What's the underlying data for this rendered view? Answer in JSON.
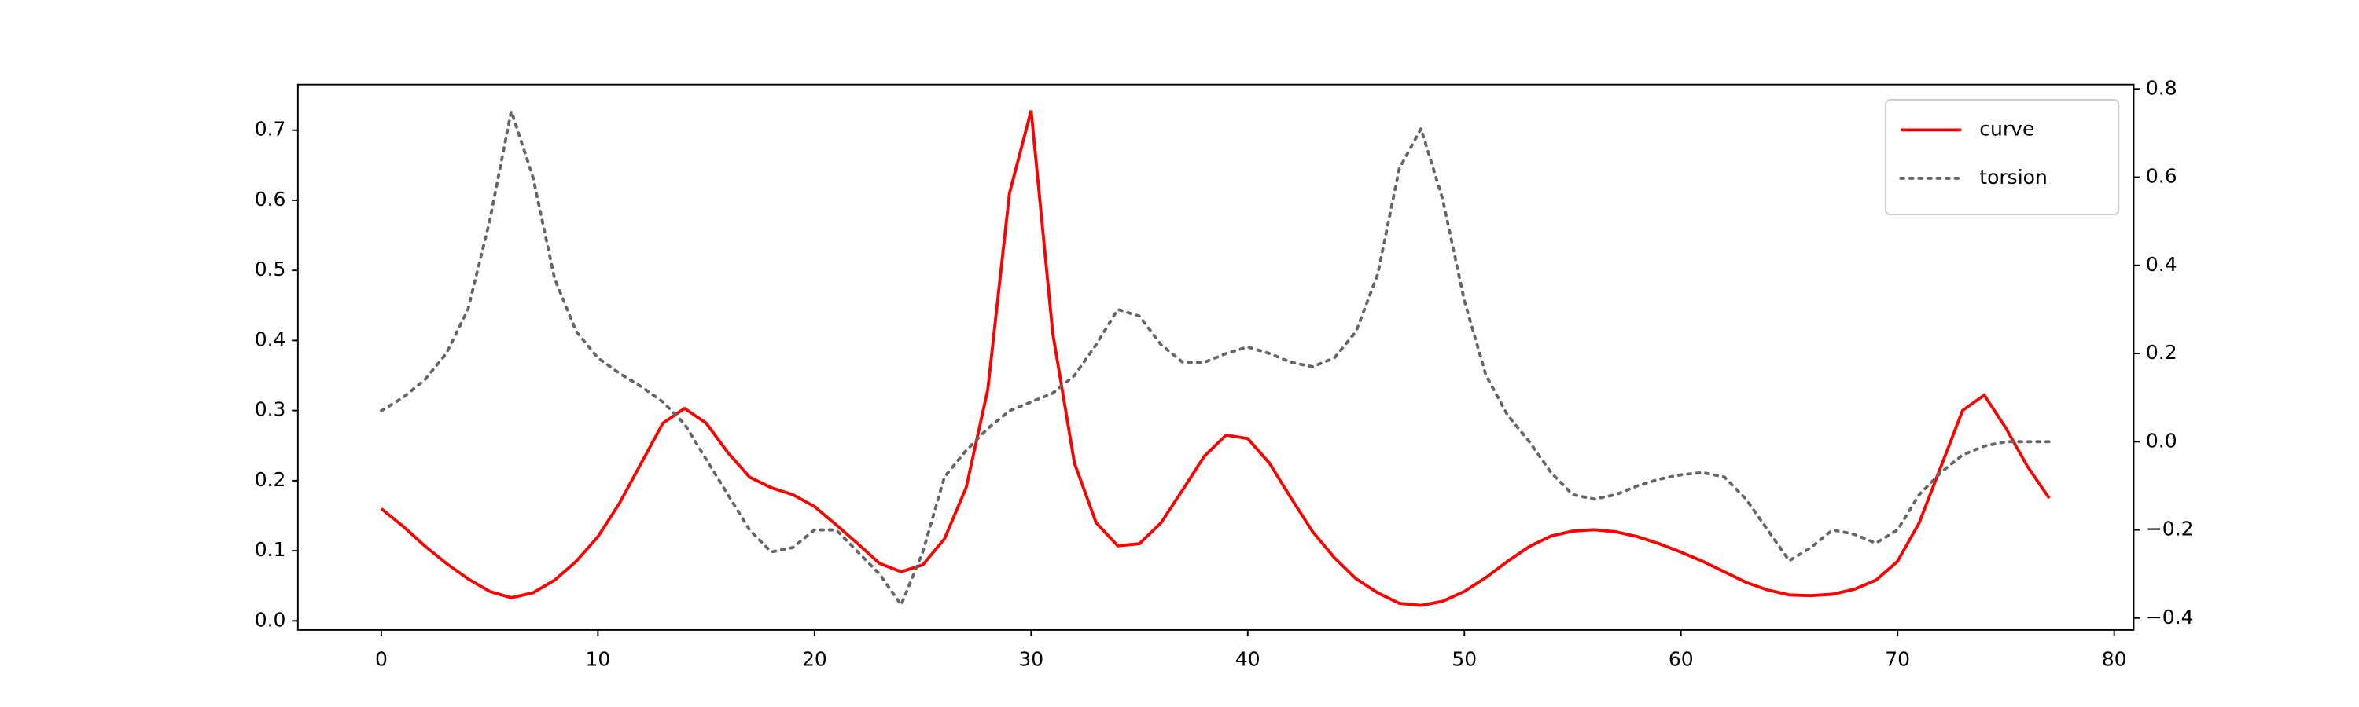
{
  "chart_data": {
    "type": "line",
    "x": [
      0,
      1,
      2,
      3,
      4,
      5,
      6,
      7,
      8,
      9,
      10,
      11,
      12,
      13,
      14,
      15,
      16,
      17,
      18,
      19,
      20,
      21,
      22,
      23,
      24,
      25,
      26,
      27,
      28,
      29,
      30,
      31,
      32,
      33,
      34,
      35,
      36,
      37,
      38,
      39,
      40,
      41,
      42,
      43,
      44,
      45,
      46,
      47,
      48,
      49,
      50,
      51,
      52,
      53,
      54,
      55,
      56,
      57,
      58,
      59,
      60,
      61,
      62,
      63,
      64,
      65,
      66,
      67,
      68,
      69,
      70,
      71,
      72,
      73,
      74,
      75,
      76,
      77
    ],
    "series": [
      {
        "name": "curve",
        "color": "#ff0000",
        "linestyle": "solid",
        "axis": "y",
        "values": [
          0.16,
          0.135,
          0.107,
          0.082,
          0.06,
          0.042,
          0.033,
          0.04,
          0.058,
          0.085,
          0.12,
          0.168,
          0.225,
          0.282,
          0.303,
          0.282,
          0.24,
          0.205,
          0.19,
          0.18,
          0.163,
          0.137,
          0.11,
          0.082,
          0.07,
          0.08,
          0.117,
          0.19,
          0.33,
          0.61,
          0.728,
          0.41,
          0.225,
          0.14,
          0.107,
          0.11,
          0.14,
          0.187,
          0.235,
          0.265,
          0.26,
          0.225,
          0.175,
          0.127,
          0.09,
          0.06,
          0.04,
          0.025,
          0.022,
          0.028,
          0.042,
          0.062,
          0.085,
          0.106,
          0.121,
          0.128,
          0.13,
          0.127,
          0.12,
          0.11,
          0.098,
          0.085,
          0.07,
          0.055,
          0.044,
          0.037,
          0.036,
          0.038,
          0.045,
          0.058,
          0.085,
          0.14,
          0.22,
          0.3,
          0.322,
          0.275,
          0.22,
          0.175
        ]
      },
      {
        "name": "torsion",
        "color": "#666666",
        "linestyle": "dotted",
        "axis": "y2",
        "values": [
          0.07,
          0.1,
          0.14,
          0.2,
          0.3,
          0.5,
          0.75,
          0.6,
          0.37,
          0.25,
          0.19,
          0.155,
          0.125,
          0.09,
          0.04,
          -0.04,
          -0.12,
          -0.2,
          -0.25,
          -0.24,
          -0.2,
          -0.2,
          -0.25,
          -0.3,
          -0.37,
          -0.25,
          -0.08,
          -0.02,
          0.03,
          0.07,
          0.09,
          0.11,
          0.15,
          0.22,
          0.3,
          0.285,
          0.22,
          0.18,
          0.18,
          0.2,
          0.215,
          0.2,
          0.18,
          0.17,
          0.19,
          0.25,
          0.38,
          0.62,
          0.71,
          0.55,
          0.32,
          0.15,
          0.06,
          0.0,
          -0.07,
          -0.12,
          -0.13,
          -0.12,
          -0.1,
          -0.085,
          -0.075,
          -0.07,
          -0.08,
          -0.13,
          -0.2,
          -0.27,
          -0.24,
          -0.2,
          -0.21,
          -0.23,
          -0.2,
          -0.12,
          -0.07,
          -0.03,
          -0.01,
          0.0,
          0.0,
          0.0
        ]
      }
    ],
    "xlim": [
      -3.85,
      80.9
    ],
    "xticks": [
      0,
      10,
      20,
      30,
      40,
      50,
      60,
      70,
      80
    ],
    "ylim": [
      -0.013,
      0.765
    ],
    "yticks": [
      {
        "value": 0,
        "label": "0.0"
      },
      0.1,
      0.2,
      0.3,
      0.4,
      0.5,
      0.6,
      0.7
    ],
    "y2lim": [
      -0.427,
      0.81
    ],
    "y2ticks": [
      {
        "value": -0.4,
        "label": "−0.4"
      },
      {
        "value": -0.2,
        "label": "−0.2"
      },
      {
        "value": 0,
        "label": "0.0"
      },
      0.2,
      0.4,
      0.6,
      0.8
    ],
    "grid": false,
    "legend": "upper right"
  }
}
